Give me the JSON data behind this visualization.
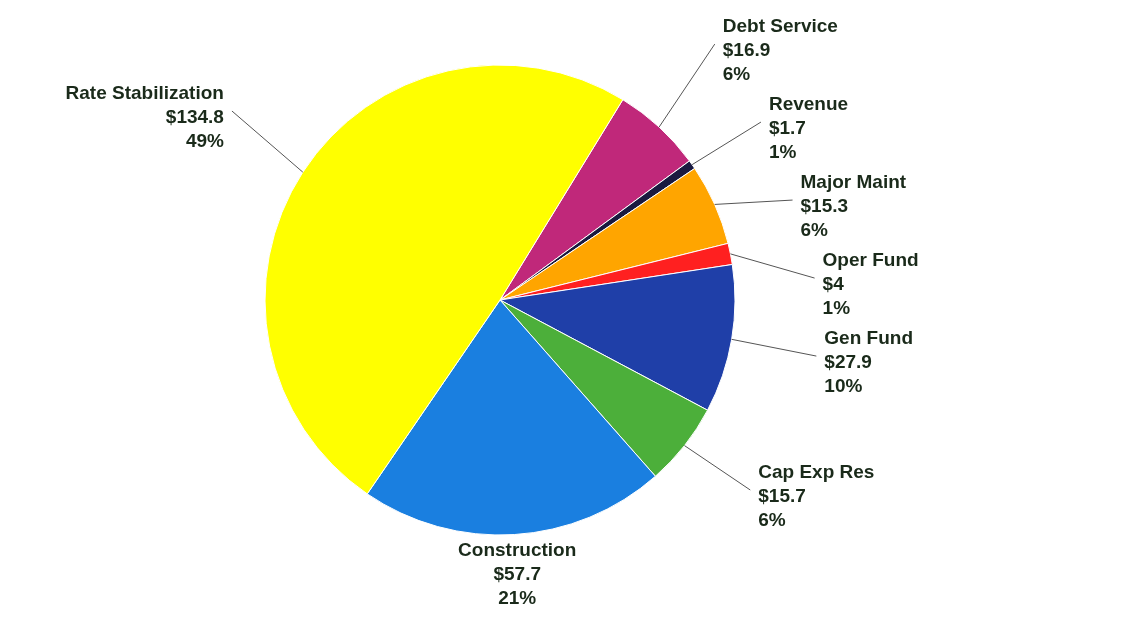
{
  "chart_data": {
    "type": "pie",
    "categories": [
      "Debt Service",
      "Revenue",
      "Major Maint",
      "Oper Fund",
      "Gen Fund",
      "Cap Exp Res",
      "Construction",
      "Rate Stabilization"
    ],
    "values": [
      16.9,
      1.7,
      15.3,
      4,
      27.9,
      15.7,
      57.7,
      134.8
    ],
    "colors": [
      "#c0287a",
      "#1a1a40",
      "#ffa500",
      "#ff2020",
      "#1f3fa8",
      "#4caf3a",
      "#1a7fe0",
      "#ffff00"
    ],
    "value_labels": [
      "$16.9\n6%",
      "$1.7\n1%",
      "$15.3\n6%",
      "$4\n1%",
      "$27.9\n10%",
      "$15.7\n6%",
      "$57.7\n21%",
      "$134.8\n49%"
    ]
  }
}
